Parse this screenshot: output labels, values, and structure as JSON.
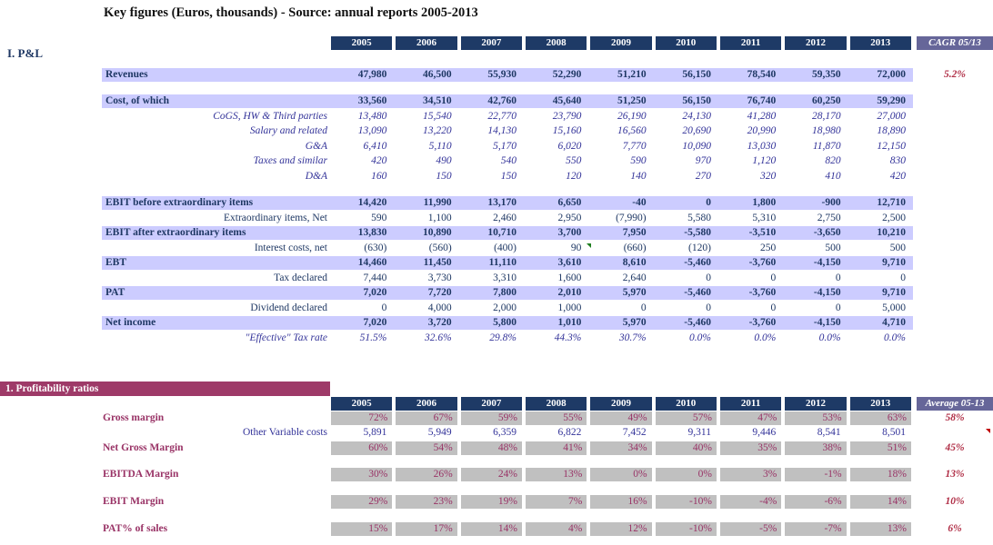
{
  "title": "Key figures (Euros, thousands) - Source: annual reports 2005-2013",
  "colors": {
    "year_header_bg": "#1e3a66",
    "summary_header_bg": "#666699",
    "highlight_band": "#CCCCFF",
    "navy_text": "#1F3864",
    "blue_italic_text": "#333399",
    "maroon": "#993366",
    "section_bar_bg": "#9E3A68",
    "gray_cell": "#C0C0C0",
    "summary_value_red": "#B02E46",
    "green_indicator": "#1e7e1e",
    "red_indicator": "#C00000"
  },
  "pl": {
    "section_label": "I. P&L",
    "years": [
      "2005",
      "2006",
      "2007",
      "2008",
      "2009",
      "2010",
      "2011",
      "2012",
      "2013"
    ],
    "summary_header": "CAGR 05/13",
    "rows": [
      {
        "label": "Revenues",
        "style": "band",
        "values": [
          "47,980",
          "46,500",
          "55,930",
          "52,290",
          "51,210",
          "56,150",
          "78,540",
          "59,350",
          "72,000"
        ],
        "extra": "5.2%"
      },
      {
        "style": "spacer"
      },
      {
        "label": "Cost, of which",
        "style": "band",
        "values": [
          "33,560",
          "34,510",
          "42,760",
          "45,640",
          "51,250",
          "56,150",
          "76,740",
          "60,250",
          "59,290"
        ]
      },
      {
        "label": "CoGS, HW & Third parties",
        "style": "italic",
        "values": [
          "13,480",
          "15,540",
          "22,770",
          "23,790",
          "26,190",
          "24,130",
          "41,280",
          "28,170",
          "27,000"
        ]
      },
      {
        "label": "Salary and related",
        "style": "italic",
        "values": [
          "13,090",
          "13,220",
          "14,130",
          "15,160",
          "16,560",
          "20,690",
          "20,990",
          "18,980",
          "18,890"
        ]
      },
      {
        "label": "G&A",
        "style": "italic",
        "values": [
          "6,410",
          "5,110",
          "5,170",
          "6,020",
          "7,770",
          "10,090",
          "13,030",
          "11,870",
          "12,150"
        ]
      },
      {
        "label": "Taxes and similar",
        "style": "italic",
        "values": [
          "420",
          "490",
          "540",
          "550",
          "590",
          "970",
          "1,120",
          "820",
          "830"
        ]
      },
      {
        "label": "D&A",
        "style": "italic",
        "values": [
          "160",
          "150",
          "150",
          "120",
          "140",
          "270",
          "320",
          "410",
          "420"
        ]
      },
      {
        "style": "spacer"
      },
      {
        "label": "EBIT before extraordinary items",
        "style": "band",
        "values": [
          "14,420",
          "11,990",
          "13,170",
          "6,650",
          "-40",
          "0",
          "1,800",
          "-900",
          "12,710"
        ]
      },
      {
        "label": "Extraordinary items, Net",
        "style": "plain",
        "values": [
          "590",
          "1,100",
          "2,460",
          "2,950",
          "(7,990)",
          "5,580",
          "5,310",
          "2,750",
          "2,500"
        ]
      },
      {
        "label": "EBIT after extraordinary items",
        "style": "band",
        "values": [
          "13,830",
          "10,890",
          "10,710",
          "3,700",
          "7,950",
          "-5,580",
          "-3,510",
          "-3,650",
          "10,210"
        ]
      },
      {
        "label": "Interest costs, net",
        "style": "plain",
        "values": [
          "(630)",
          "(560)",
          "(400)",
          "90",
          "(660)",
          "(120)",
          "250",
          "500",
          "500"
        ],
        "indicator": {
          "icon": "green-corner-icon",
          "col": 4
        }
      },
      {
        "label": "EBT",
        "style": "band",
        "values": [
          "14,460",
          "11,450",
          "11,110",
          "3,610",
          "8,610",
          "-5,460",
          "-3,760",
          "-4,150",
          "9,710"
        ]
      },
      {
        "label": "Tax declared",
        "style": "plain",
        "values": [
          "7,440",
          "3,730",
          "3,310",
          "1,600",
          "2,640",
          "0",
          "0",
          "0",
          "0"
        ]
      },
      {
        "label": "PAT",
        "style": "band",
        "values": [
          "7,020",
          "7,720",
          "7,800",
          "2,010",
          "5,970",
          "-5,460",
          "-3,760",
          "-4,150",
          "9,710"
        ]
      },
      {
        "label": "Dividend declared",
        "style": "plain",
        "values": [
          "0",
          "4,000",
          "2,000",
          "1,000",
          "0",
          "0",
          "0",
          "0",
          "5,000"
        ]
      },
      {
        "label": "Net income",
        "style": "band",
        "values": [
          "7,020",
          "3,720",
          "5,800",
          "1,010",
          "5,970",
          "-5,460",
          "-3,760",
          "-4,150",
          "4,710"
        ]
      },
      {
        "label": "\"Effective\" Tax rate",
        "style": "eff",
        "values": [
          "51.5%",
          "32.6%",
          "29.8%",
          "44.3%",
          "30.7%",
          "0.0%",
          "0.0%",
          "0.0%",
          "0.0%"
        ]
      }
    ]
  },
  "ratios": {
    "section_label": "1. Profitability ratios",
    "years": [
      "2005",
      "2006",
      "2007",
      "2008",
      "2009",
      "2010",
      "2011",
      "2012",
      "2013"
    ],
    "summary_header": "Average 05-13",
    "rows": [
      {
        "label": "Gross margin",
        "style": "gray",
        "values": [
          "72%",
          "67%",
          "59%",
          "55%",
          "49%",
          "57%",
          "47%",
          "53%",
          "63%"
        ],
        "extra": "58%"
      },
      {
        "label": "Other Variable costs",
        "style": "bluerow",
        "values": [
          "5,891",
          "5,949",
          "6,359",
          "6,822",
          "7,452",
          "9,311",
          "9,446",
          "8,541",
          "8,501"
        ],
        "indicator": {
          "icon": "red-corner-icon",
          "col": "summary"
        }
      },
      {
        "label": "Net Gross Margin",
        "style": "gray",
        "values": [
          "60%",
          "54%",
          "48%",
          "41%",
          "34%",
          "40%",
          "35%",
          "38%",
          "51%"
        ],
        "extra": "45%"
      },
      {
        "style": "spacer"
      },
      {
        "label": "EBITDA Margin",
        "style": "gray",
        "values": [
          "30%",
          "26%",
          "24%",
          "13%",
          "0%",
          "0%",
          "3%",
          "-1%",
          "18%"
        ],
        "extra": "13%"
      },
      {
        "style": "spacer"
      },
      {
        "label": "EBIT Margin",
        "style": "gray",
        "values": [
          "29%",
          "23%",
          "19%",
          "7%",
          "16%",
          "-10%",
          "-4%",
          "-6%",
          "14%"
        ],
        "extra": "10%"
      },
      {
        "style": "spacer"
      },
      {
        "label": "PAT% of sales",
        "style": "gray",
        "values": [
          "15%",
          "17%",
          "14%",
          "4%",
          "12%",
          "-10%",
          "-5%",
          "-7%",
          "13%"
        ],
        "extra": "6%"
      }
    ]
  }
}
